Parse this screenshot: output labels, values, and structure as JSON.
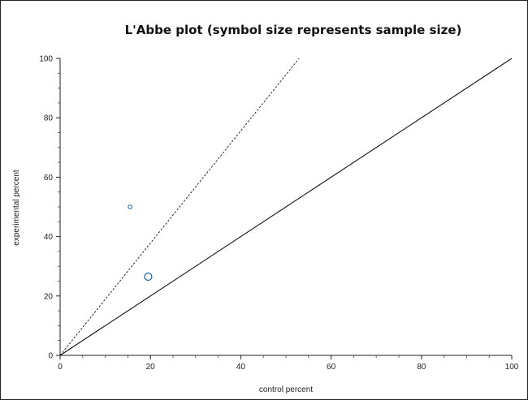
{
  "chart_data": {
    "type": "scatter",
    "title": "L'Abbe plot (symbol size represents sample size)",
    "xlabel": "control percent",
    "ylabel": "experimental percent",
    "xlim": [
      0,
      100
    ],
    "ylim": [
      0,
      100
    ],
    "x_ticks": [
      "0",
      "20",
      "40",
      "60",
      "80",
      "100"
    ],
    "y_ticks": [
      "0",
      "20",
      "40",
      "60",
      "80",
      "100"
    ],
    "grid": false,
    "points": [
      {
        "x": 15.5,
        "y": 50,
        "size": "small"
      },
      {
        "x": 19.5,
        "y": 26.5,
        "size": "large"
      }
    ],
    "reference_lines": [
      {
        "style": "solid",
        "slope": 1
      },
      {
        "style": "dashed",
        "slope": 1.89
      }
    ],
    "marker_color": "#1f5f99"
  }
}
